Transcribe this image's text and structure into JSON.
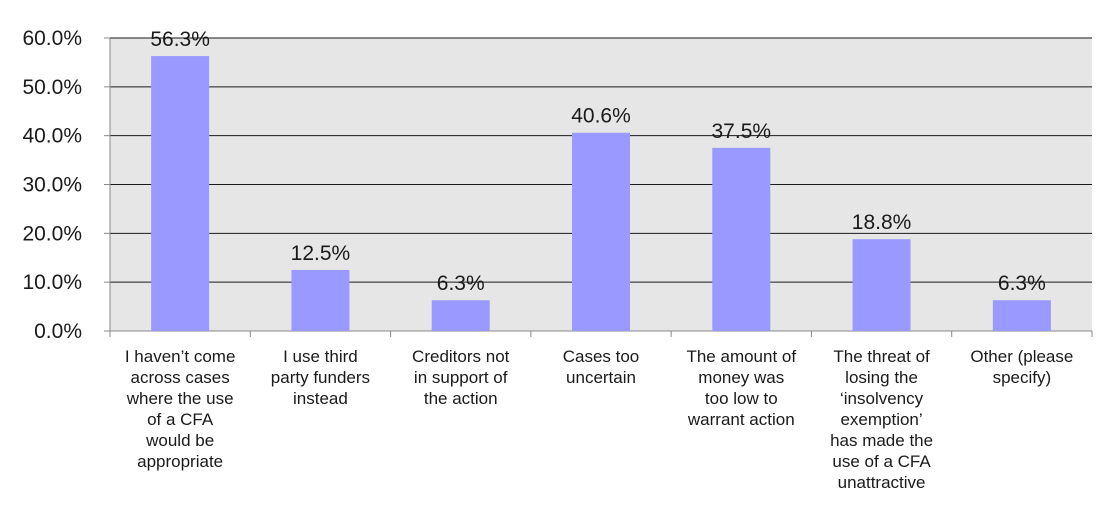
{
  "colors": {
    "plot_background": "#e6e6e6",
    "bar": "#9999ff",
    "gridline": "#1a1a1a",
    "axis": "#888888"
  },
  "chart_data": {
    "type": "bar",
    "title": "",
    "xlabel": "",
    "ylabel": "",
    "categories": [
      [
        "I haven’t come",
        "across cases",
        "where the use",
        "of a CFA",
        "would be",
        "appropriate"
      ],
      [
        "I use third",
        "party funders",
        "instead"
      ],
      [
        "Creditors not",
        "in support of",
        "the action"
      ],
      [
        "Cases too",
        "uncertain"
      ],
      [
        "The amount of",
        "money was",
        "too low to",
        "warrant action"
      ],
      [
        "The threat of",
        "losing the",
        "‘insolvency",
        "exemption’",
        "has made the",
        "use of a CFA",
        "unattractive"
      ],
      [
        "Other (please",
        "specify)"
      ]
    ],
    "values": [
      56.3,
      12.5,
      6.3,
      40.6,
      37.5,
      18.8,
      6.3
    ],
    "data_labels": [
      "56.3%",
      "12.5%",
      "6.3%",
      "40.6%",
      "37.5%",
      "18.8%",
      "6.3%"
    ],
    "ylim": [
      0,
      60
    ],
    "y_ticks": [
      0,
      10,
      20,
      30,
      40,
      50,
      60
    ],
    "y_tick_labels": [
      "0.0%",
      "10.0%",
      "20.0%",
      "30.0%",
      "40.0%",
      "50.0%",
      "60.0%"
    ],
    "grid": true,
    "legend": false
  }
}
